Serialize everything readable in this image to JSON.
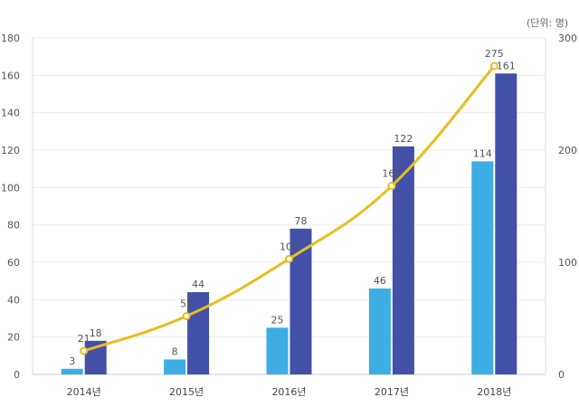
{
  "chart_data": {
    "type": "bar",
    "unit_label": "(단위: 명)",
    "categories": [
      "2014년",
      "2015년",
      "2016년",
      "2017년",
      "2018년"
    ],
    "series": [
      {
        "name": "",
        "values": [
          3,
          8,
          25,
          46,
          114
        ],
        "color": "#3daee3",
        "axis": "left",
        "type": "bar"
      },
      {
        "name": "",
        "values": [
          18,
          44,
          78,
          122,
          161
        ],
        "color": "#4350a8",
        "axis": "left",
        "type": "bar"
      },
      {
        "name": "",
        "values": [
          21,
          52,
          103,
          168,
          275
        ],
        "color": "#e8be1e",
        "axis": "right",
        "type": "line"
      }
    ],
    "y_left": {
      "min": 0,
      "max": 180,
      "ticks": [
        0,
        20,
        40,
        60,
        80,
        100,
        120,
        140,
        160,
        180
      ]
    },
    "y_right": {
      "min": 0,
      "max": 300,
      "ticks": [
        0,
        100,
        200,
        300
      ]
    },
    "grid": true,
    "legend": "none"
  }
}
